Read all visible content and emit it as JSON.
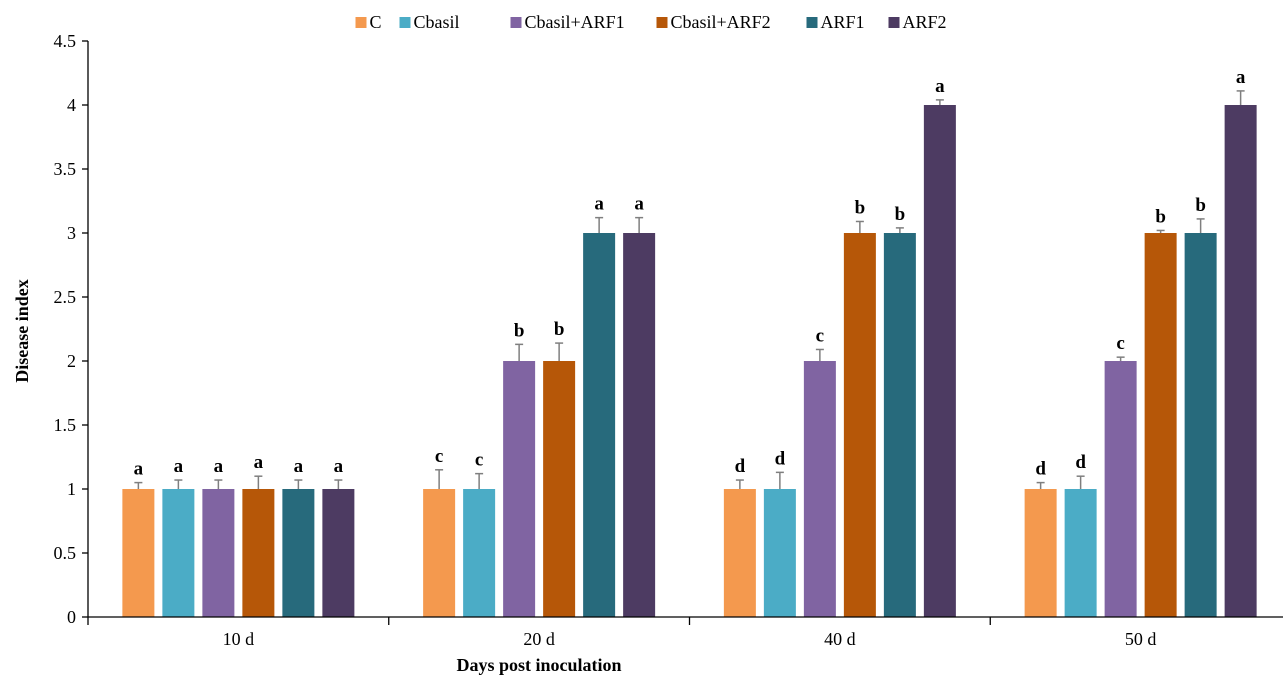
{
  "chart_data": {
    "type": "bar",
    "xlabel": "Days post inoculation",
    "ylabel": "Disease index",
    "ylim": [
      0,
      4.5
    ],
    "yticks": [
      "0",
      "0.5",
      "1",
      "1.5",
      "2",
      "2.5",
      "3",
      "3.5",
      "4",
      "4.5"
    ],
    "grid": false,
    "legend_position": "top",
    "categories": [
      "10 d",
      "20 d",
      "40 d",
      "50 d"
    ],
    "series": [
      {
        "name": "C",
        "color": "#F4994E",
        "values": [
          1,
          1,
          1,
          1
        ],
        "errors": [
          0.05,
          0.15,
          0.07,
          0.05
        ],
        "labels": [
          "a",
          "c",
          "d",
          "d"
        ]
      },
      {
        "name": "Cbasil",
        "color": "#4BACC6",
        "values": [
          1,
          1,
          1,
          1
        ],
        "errors": [
          0.07,
          0.12,
          0.13,
          0.1
        ],
        "labels": [
          "a",
          "c",
          "d",
          "d"
        ]
      },
      {
        "name": "Cbasil+ARF1",
        "color": "#8064A2",
        "values": [
          1,
          2,
          2,
          2
        ],
        "errors": [
          0.07,
          0.13,
          0.09,
          0.03
        ],
        "labels": [
          "a",
          "b",
          "c",
          "c"
        ]
      },
      {
        "name": "Cbasil+ARF2",
        "color": "#B65708",
        "values": [
          1,
          2,
          3,
          3
        ],
        "errors": [
          0.1,
          0.14,
          0.09,
          0.02
        ],
        "labels": [
          "a",
          "b",
          "b",
          "b"
        ]
      },
      {
        "name": "ARF1",
        "color": "#276A7C",
        "values": [
          1,
          3,
          3,
          3
        ],
        "errors": [
          0.07,
          0.12,
          0.04,
          0.11
        ],
        "labels": [
          "a",
          "a",
          "b",
          "b"
        ]
      },
      {
        "name": "ARF2",
        "color": "#4D3B62",
        "values": [
          1,
          3,
          4,
          4
        ],
        "errors": [
          0.07,
          0.12,
          0.04,
          0.11
        ],
        "labels": [
          "a",
          "a",
          "a",
          "a"
        ]
      }
    ]
  }
}
